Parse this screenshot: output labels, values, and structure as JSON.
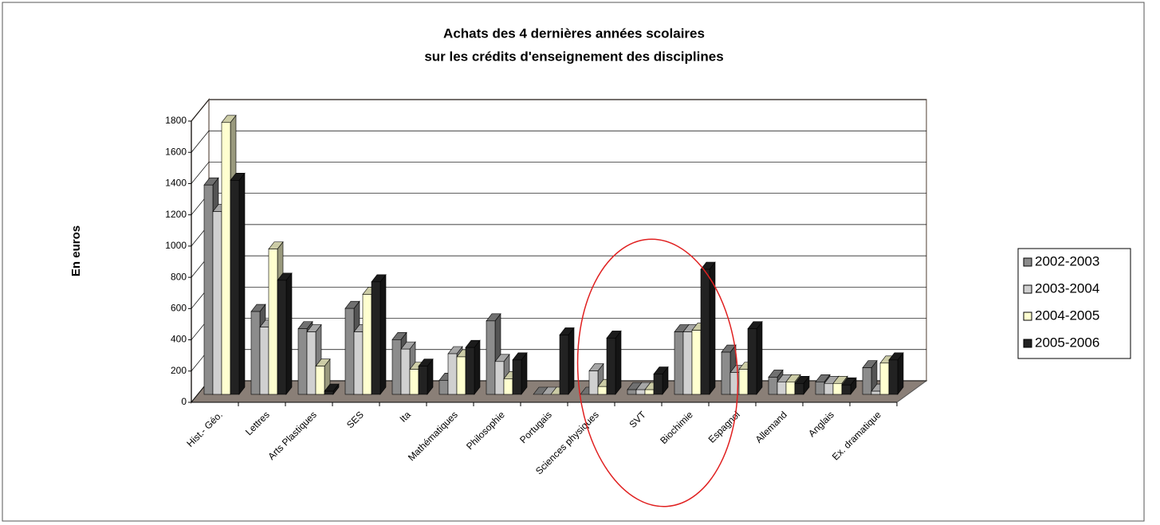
{
  "chart_data": {
    "type": "bar3d",
    "title": [
      "Achats des 4 dernières années scolaires",
      "sur les crédits d'enseignement des disciplines"
    ],
    "y_label": "En euros",
    "categories": [
      "Hist.- Géo.",
      "Lettres",
      "Arts Plastiques",
      "SES",
      "Ita",
      "Mathématiques",
      "Philosophie",
      "Portugais",
      "Sciences physiques",
      "SVT",
      "Biochimie",
      "Espagnol",
      "Allemand",
      "Anglais",
      "Ex. dramatique"
    ],
    "series": [
      {
        "name": "2002-2003",
        "color": "#8c8c8c",
        "values": [
          1340,
          530,
          420,
          550,
          350,
          90,
          470,
          0,
          0,
          30,
          400,
          270,
          110,
          80,
          170
        ]
      },
      {
        "name": "2003-2004",
        "color": "#d0d0d0",
        "values": [
          1170,
          430,
          400,
          400,
          290,
          260,
          210,
          0,
          150,
          30,
          400,
          140,
          80,
          70,
          20
        ]
      },
      {
        "name": "2004-2005",
        "color": "#ffffd0",
        "values": [
          1740,
          930,
          180,
          640,
          160,
          240,
          100,
          0,
          50,
          30,
          410,
          160,
          80,
          70,
          200
        ]
      },
      {
        "name": "2005-2006",
        "color": "#222222",
        "values": [
          1370,
          730,
          20,
          720,
          180,
          300,
          220,
          380,
          360,
          130,
          800,
          420,
          70,
          60,
          220
        ]
      }
    ],
    "ylim": [
      0,
      1800
    ],
    "yticks": [
      0,
      200,
      400,
      600,
      800,
      1000,
      1200,
      1400,
      1600,
      1800
    ],
    "grid": true,
    "legend": "right"
  }
}
